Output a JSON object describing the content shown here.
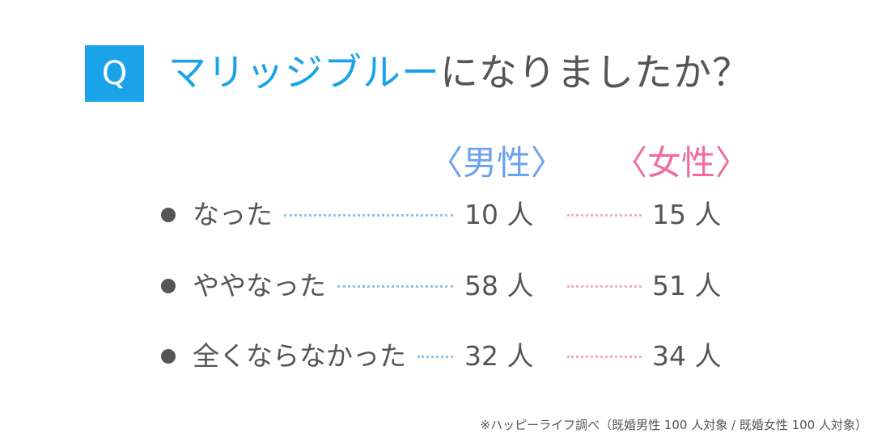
{
  "badge": "Q",
  "question": {
    "highlight": "マリッジブルー",
    "rest": "になりましたか？"
  },
  "colors": {
    "accent": "#1aa3e8",
    "male": "#6aa2ec",
    "female": "#f26aa3",
    "text": "#555555"
  },
  "headers": {
    "male": "〈男性〉",
    "female": "〈女性〉"
  },
  "unit": "人",
  "footnote": "※ハッピーライフ調べ（既婚男性 100 人対象 / 既婚女性 100 人対象）",
  "chart_data": {
    "type": "table",
    "title": "マリッジブルーになりましたか？",
    "columns": [
      "男性",
      "女性"
    ],
    "categories": [
      "なった",
      "ややなった",
      "全くならなかった"
    ],
    "series": [
      {
        "name": "男性",
        "values": [
          10,
          58,
          32
        ]
      },
      {
        "name": "女性",
        "values": [
          15,
          51,
          34
        ]
      }
    ],
    "unit": "人"
  }
}
